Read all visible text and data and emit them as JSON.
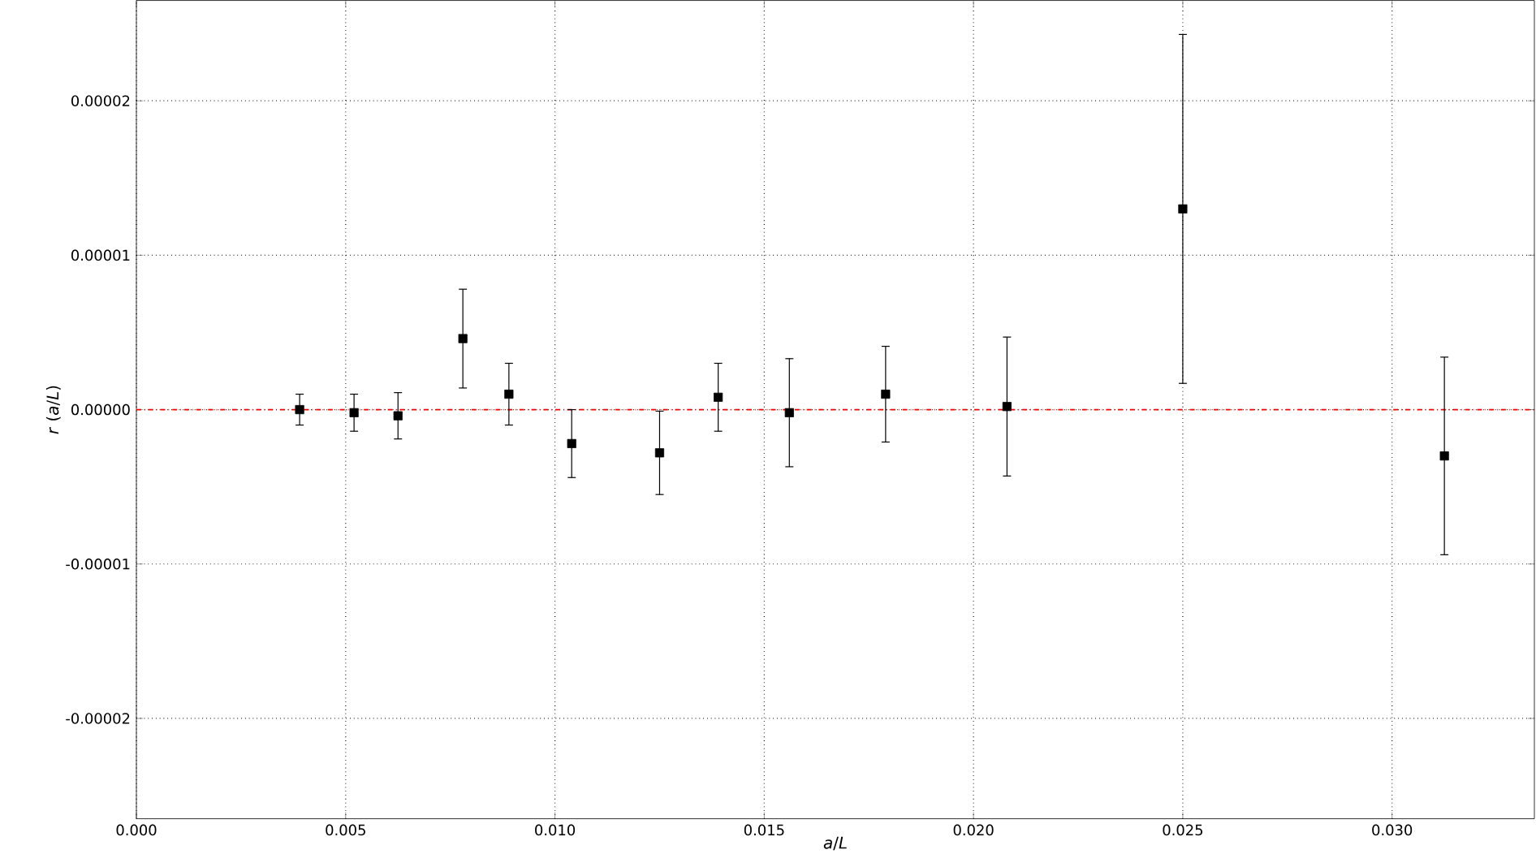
{
  "chart_data": {
    "type": "scatter",
    "xlabel": "*a*/*L*",
    "ylabel": "*r* (*a*/*L*)",
    "xlim": [
      0,
      0.0334
    ],
    "ylim": [
      -2.65e-05,
      2.65e-05
    ],
    "xticks": [
      {
        "value": 0,
        "label": "0.000"
      },
      {
        "value": 0.005,
        "label": "0.005"
      },
      {
        "value": 0.01,
        "label": "0.010"
      },
      {
        "value": 0.015,
        "label": "0.015"
      },
      {
        "value": 0.02,
        "label": "0.020"
      },
      {
        "value": 0.025,
        "label": "0.025"
      },
      {
        "value": 0.03,
        "label": "0.030"
      }
    ],
    "yticks": [
      {
        "value": -2e-05,
        "label": "-0.00002"
      },
      {
        "value": -1e-05,
        "label": "-0.00001"
      },
      {
        "value": 0,
        "label": "0.00000"
      },
      {
        "value": 1e-05,
        "label": "0.00001"
      },
      {
        "value": 2e-05,
        "label": "0.00002"
      }
    ],
    "grid": true,
    "marker": "square",
    "x": [
      0.0039,
      0.0052,
      0.00625,
      0.0078,
      0.0089,
      0.0104,
      0.0125,
      0.0139,
      0.0156,
      0.0179,
      0.0208,
      0.025,
      0.03125
    ],
    "series": [
      {
        "color": "#000000",
        "values": [
          0.0,
          -2e-07,
          -4e-07,
          4.6e-06,
          1e-06,
          -2.2e-06,
          -2.8e-06,
          8e-07,
          -2e-07,
          1e-06,
          2e-07,
          1.3e-05,
          -3e-06
        ],
        "errors": [
          1e-06,
          1.2e-06,
          1.5e-06,
          3.2e-06,
          2e-06,
          2.2e-06,
          2.7e-06,
          2.2e-06,
          3.5e-06,
          3.1e-06,
          4.5e-06,
          1.13e-05,
          6.4e-06
        ]
      }
    ],
    "ref_lines": [
      {
        "axis": "y",
        "value": 0,
        "color": "#ff0000",
        "line_style": "dashdot"
      }
    ]
  }
}
